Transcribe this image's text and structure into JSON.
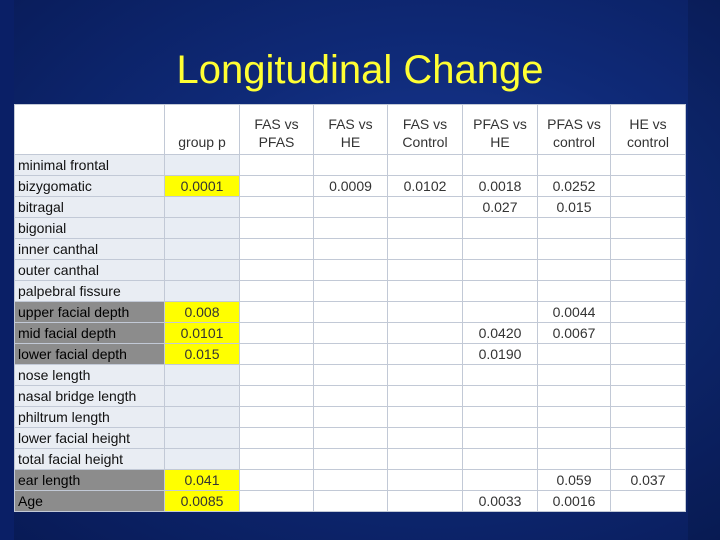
{
  "title": "Longitudinal Change",
  "columns": [
    {
      "l1": "",
      "l2": ""
    },
    {
      "l1": "",
      "l2": "group p"
    },
    {
      "l1": "FAS  vs",
      "l2": "PFAS"
    },
    {
      "l1": "FAS vs",
      "l2": "HE"
    },
    {
      "l1": "FAS vs",
      "l2": "Control"
    },
    {
      "l1": "PFAS vs",
      "l2": "HE"
    },
    {
      "l1": "PFAS vs",
      "l2": "control"
    },
    {
      "l1": "HE vs",
      "l2": "control"
    }
  ],
  "rows": [
    {
      "label": "minimal frontal",
      "cells": [
        "",
        "",
        "",
        "",
        "",
        "",
        ""
      ]
    },
    {
      "label": "bizygomatic",
      "cells": [
        "0.0001",
        "",
        "0.0009",
        "0.0102",
        "0.0018",
        "0.0252",
        ""
      ]
    },
    {
      "label": "bitragal",
      "cells": [
        "",
        "",
        "",
        "",
        "0.027",
        "0.015",
        ""
      ]
    },
    {
      "label": "bigonial",
      "cells": [
        "",
        "",
        "",
        "",
        "",
        "",
        ""
      ]
    },
    {
      "label": "inner canthal",
      "cells": [
        "",
        "",
        "",
        "",
        "",
        "",
        ""
      ]
    },
    {
      "label": "outer canthal",
      "cells": [
        "",
        "",
        "",
        "",
        "",
        "",
        ""
      ]
    },
    {
      "label": "palpebral fissure",
      "cells": [
        "",
        "",
        "",
        "",
        "",
        "",
        ""
      ]
    },
    {
      "label": "upper facial depth",
      "cells": [
        "0.008",
        "",
        "",
        "",
        "",
        "0.0044",
        ""
      ]
    },
    {
      "label": "mid facial depth",
      "cells": [
        "0.0101",
        "",
        "",
        "",
        "0.0420",
        "0.0067",
        ""
      ]
    },
    {
      "label": "lower facial depth",
      "cells": [
        "0.015",
        "",
        "",
        "",
        "0.0190",
        "",
        ""
      ]
    },
    {
      "label": "nose length",
      "cells": [
        "",
        "",
        "",
        "",
        "",
        "",
        ""
      ]
    },
    {
      "label": "nasal bridge length",
      "cells": [
        "",
        "",
        "",
        "",
        "",
        "",
        ""
      ]
    },
    {
      "label": "philtrum length",
      "cells": [
        "",
        "",
        "",
        "",
        "",
        "",
        ""
      ]
    },
    {
      "label": "lower facial height",
      "cells": [
        "",
        "",
        "",
        "",
        "",
        "",
        ""
      ]
    },
    {
      "label": "total facial height",
      "cells": [
        "",
        "",
        "",
        "",
        "",
        "",
        ""
      ]
    },
    {
      "label": "ear length",
      "cells": [
        "0.041",
        "",
        "",
        "",
        "",
        "0.059",
        "0.037"
      ]
    },
    {
      "label": "Age",
      "cells": [
        "0.0085",
        "",
        "",
        "",
        "0.0033",
        "0.0016",
        ""
      ]
    }
  ],
  "colors": {
    "title": "#ffff33",
    "highlight": "#ffff00",
    "background": "#0f2a78"
  }
}
